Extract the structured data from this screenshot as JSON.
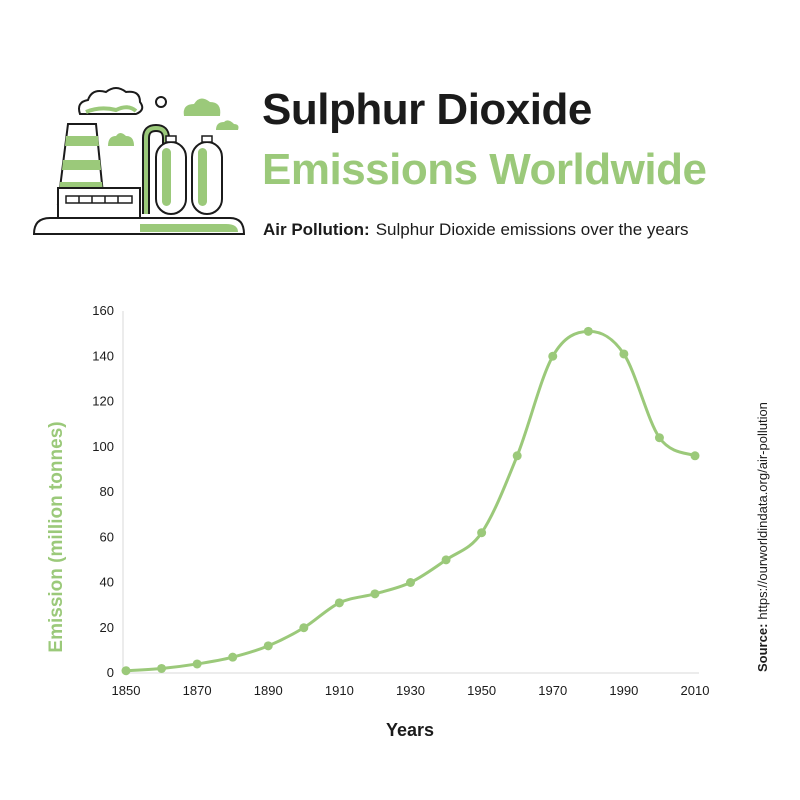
{
  "header": {
    "title_line1": "Sulphur Dioxide",
    "title_line2": "Emissions Worldwide",
    "subtitle_lead": "Air Pollution:",
    "subtitle_text": "Sulphur Dioxide emissions over the years"
  },
  "source": {
    "lead": "Source:",
    "text": "https://ourworldindata.org/air-pollution"
  },
  "colors": {
    "accent": "#9bc97a",
    "dark": "#1b1b1b",
    "axis": "#d9d9d9"
  },
  "illustration": {
    "icon": "factory-illustration-icon"
  },
  "chart_data": {
    "type": "line",
    "title": "",
    "xlabel": "Years",
    "ylabel": "Emission (million tonnes)",
    "x": [
      1850,
      1860,
      1870,
      1880,
      1890,
      1900,
      1910,
      1920,
      1930,
      1940,
      1950,
      1960,
      1970,
      1980,
      1990,
      2000,
      2010
    ],
    "series": [
      {
        "values": [
          1,
          2,
          4,
          7,
          12,
          20,
          31,
          35,
          40,
          50,
          62,
          96,
          140,
          151,
          141,
          104,
          96
        ]
      }
    ],
    "xticks": [
      1850,
      1870,
      1890,
      1910,
      1930,
      1950,
      1970,
      1990,
      2010
    ],
    "yticks": [
      0,
      20,
      40,
      60,
      80,
      100,
      120,
      140,
      160
    ],
    "xlim": [
      1850,
      2010
    ],
    "ylim": [
      0,
      160
    ],
    "grid": false,
    "legend": "none"
  }
}
